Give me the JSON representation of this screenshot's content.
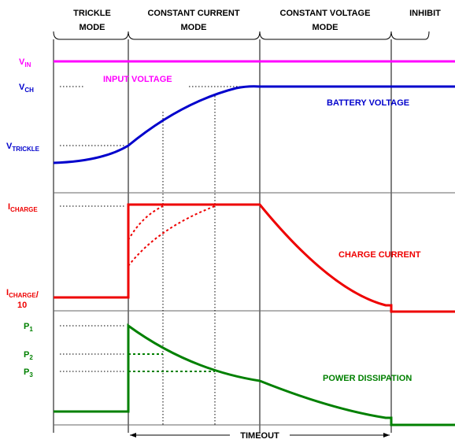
{
  "modes": [
    {
      "line1": "TRICKLE",
      "line2": "MODE"
    },
    {
      "line1": "CONSTANT CURRENT",
      "line2": "MODE"
    },
    {
      "line1": "CONSTANT VOLTAGE",
      "line2": "MODE"
    },
    {
      "line1": "INHIBIT"
    }
  ],
  "labels": {
    "vin": {
      "main": "V",
      "sub": "IN"
    },
    "vch": {
      "main": "V",
      "sub": "CH"
    },
    "vtrickle": {
      "main": "V",
      "sub": "TRICKLE"
    },
    "icharge": {
      "main": "I",
      "sub": "CHARGE"
    },
    "icharge10": {
      "main": "I",
      "sub": "CHARGE",
      "tail": "/",
      "line2": "10"
    },
    "p1": {
      "main": "P",
      "sub": "1"
    },
    "p2": {
      "main": "P",
      "sub": "2"
    },
    "p3": {
      "main": "P",
      "sub": "3"
    }
  },
  "curves": {
    "input_voltage": "INPUT VOLTAGE",
    "battery_voltage": "BATTERY VOLTAGE",
    "charge_current": "CHARGE CURRENT",
    "power_dissipation": "POWER DISSIPATION"
  },
  "timeout": "TIMEOUT"
}
